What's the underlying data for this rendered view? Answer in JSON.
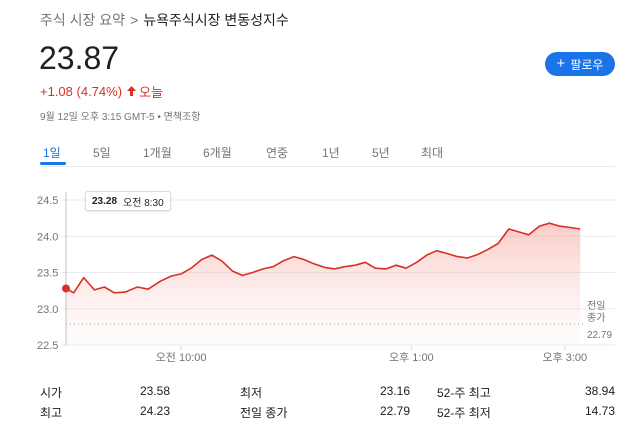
{
  "breadcrumb": {
    "parent": "주식 시장 요약",
    "separator": ">",
    "current": "뉴욕주식시장 변동성지수"
  },
  "quote": {
    "price": "23.87",
    "change": "+1.08 (4.74%)",
    "direction_icon": "arrow-up-icon",
    "period": "오늘",
    "meta": "9월 12일 오후 3:15 GMT-5 • 면책조항"
  },
  "follow_button": {
    "label": "팔로우",
    "icon": "plus-icon"
  },
  "tabs": [
    {
      "label": "1일",
      "active": true
    },
    {
      "label": "5일",
      "active": false
    },
    {
      "label": "1개월",
      "active": false
    },
    {
      "label": "6개월",
      "active": false
    },
    {
      "label": "연중",
      "active": false
    },
    {
      "label": "1년",
      "active": false
    },
    {
      "label": "5년",
      "active": false
    },
    {
      "label": "최대",
      "active": false
    }
  ],
  "tooltip": {
    "value": "23.28",
    "time": "오전 8:30"
  },
  "colors": {
    "accent": "#1a73e8",
    "negative_red": "#d93025",
    "line": "#d93025",
    "fill": "#fce8e6"
  },
  "chart_data": {
    "type": "area",
    "y_ticks": [
      "24.5",
      "24.0",
      "23.5",
      "23.0",
      "22.5"
    ],
    "ylim": [
      22.5,
      24.5
    ],
    "x_ticks": [
      "오전 10:00",
      "오후 1:00",
      "오후 3:00"
    ],
    "x_tick_hours": [
      10,
      13,
      15
    ],
    "xlim": [
      8.5,
      15.25
    ],
    "grid": true,
    "reference_line": {
      "label_line1": "전일",
      "label_line2": "종가",
      "value": "22.79",
      "y": 22.79
    },
    "series": [
      {
        "x": [
          8.5,
          8.6,
          8.73,
          8.87,
          9.0,
          9.13,
          9.27,
          9.43,
          9.57,
          9.73,
          9.87,
          10.0,
          10.13,
          10.27,
          10.4,
          10.53,
          10.67,
          10.8,
          10.93,
          11.07,
          11.2,
          11.33,
          11.47,
          11.6,
          11.73,
          11.87,
          12.0,
          12.13,
          12.27,
          12.4,
          12.53,
          12.67,
          12.8,
          12.93,
          13.07,
          13.2,
          13.33,
          13.47,
          13.6,
          13.73,
          13.87,
          14.0,
          14.13,
          14.27,
          14.4,
          14.53,
          14.67,
          14.8,
          14.93,
          15.07,
          15.2
        ],
        "y": [
          23.28,
          23.22,
          23.43,
          23.26,
          23.3,
          23.22,
          23.23,
          23.3,
          23.27,
          23.38,
          23.45,
          23.48,
          23.56,
          23.68,
          23.74,
          23.66,
          23.52,
          23.46,
          23.5,
          23.55,
          23.58,
          23.66,
          23.72,
          23.68,
          23.62,
          23.57,
          23.55,
          23.58,
          23.6,
          23.64,
          23.56,
          23.55,
          23.6,
          23.56,
          23.64,
          23.74,
          23.8,
          23.76,
          23.72,
          23.7,
          23.75,
          23.82,
          23.9,
          24.1,
          24.06,
          24.02,
          24.14,
          24.18,
          24.14,
          24.12,
          24.1
        ]
      }
    ]
  },
  "stats": [
    [
      {
        "label": "시가",
        "value": "23.58"
      },
      {
        "label": "최저",
        "value": "23.16"
      },
      {
        "label": "52-주 최고",
        "value": "38.94"
      }
    ],
    [
      {
        "label": "최고",
        "value": "24.23"
      },
      {
        "label": "전일 종가",
        "value": "22.79"
      },
      {
        "label": "52-주 최저",
        "value": "14.73"
      }
    ]
  ]
}
